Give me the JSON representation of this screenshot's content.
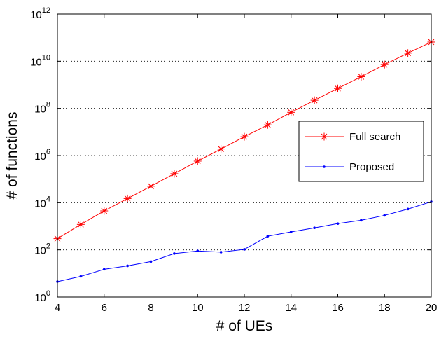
{
  "chart_data": {
    "type": "line",
    "title": "",
    "xlabel": "# of UEs",
    "ylabel": "# of functions",
    "x": [
      4,
      5,
      6,
      7,
      8,
      9,
      10,
      11,
      12,
      13,
      14,
      15,
      16,
      17,
      18,
      19,
      20
    ],
    "xlim": [
      4,
      20
    ],
    "xticks": [
      4,
      6,
      8,
      10,
      12,
      14,
      16,
      18,
      20
    ],
    "yscale": "log",
    "ylim": [
      1,
      1000000000000
    ],
    "yticks": [
      {
        "value": 1,
        "base": "10",
        "exp": "0"
      },
      {
        "value": 100,
        "base": "10",
        "exp": "2"
      },
      {
        "value": 10000,
        "base": "10",
        "exp": "4"
      },
      {
        "value": 1000000,
        "base": "10",
        "exp": "6"
      },
      {
        "value": 100000000,
        "base": "10",
        "exp": "8"
      },
      {
        "value": 10000000000,
        "base": "10",
        "exp": "10"
      },
      {
        "value": 1000000000000,
        "base": "10",
        "exp": "12"
      }
    ],
    "grid": "horizontal dotted",
    "legend_position": "center-right",
    "series": [
      {
        "name": "Full search",
        "color": "#ff0000",
        "marker": "asterisk",
        "values": [
          300,
          1200,
          4500,
          15000,
          50000,
          170000,
          580000,
          1900000,
          6300000,
          20000000,
          68000000,
          220000000,
          700000000,
          2200000000,
          7200000000,
          22000000000,
          65000000000
        ]
      },
      {
        "name": "Proposed",
        "color": "#0000ff",
        "marker": "dot",
        "values": [
          4.5,
          7.5,
          15,
          21,
          32,
          70,
          90,
          80,
          105,
          380,
          580,
          860,
          1300,
          1800,
          2900,
          5400,
          11000
        ]
      }
    ]
  }
}
